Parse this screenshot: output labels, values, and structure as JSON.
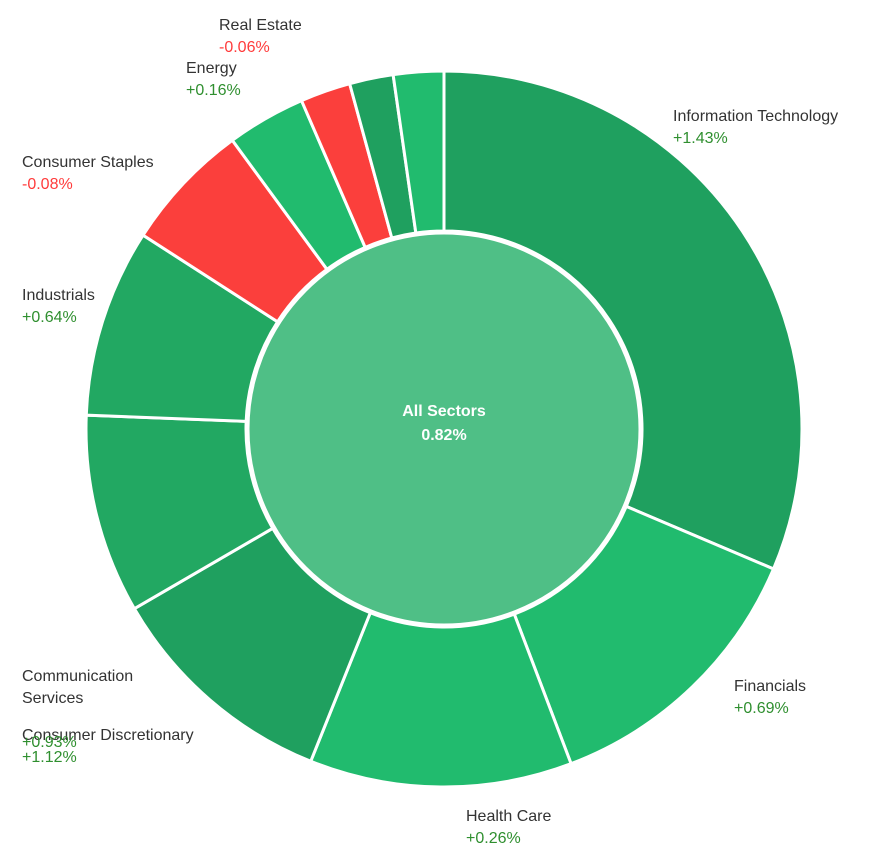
{
  "chart_data": {
    "type": "pie",
    "center": {
      "label": "All Sectors",
      "value": "0.82%"
    },
    "colors": {
      "center": "#4fbf86",
      "dark_green": "#1fa05f",
      "medium_green": "#22a862",
      "green": "#21bb6e",
      "red": "#fb3f3c",
      "border": "#ffffff"
    },
    "sectors": [
      {
        "id": "information-technology",
        "name": "Information Technology",
        "change": "+1.43%",
        "change_value": 1.43,
        "weight": 31.8,
        "color": "#1fa05f"
      },
      {
        "id": "financials",
        "name": "Financials",
        "change": "+0.69%",
        "change_value": 0.69,
        "weight": 13.0,
        "color": "#21bb6e"
      },
      {
        "id": "health-care",
        "name": "Health Care",
        "change": "+0.26%",
        "change_value": 0.26,
        "weight": 12.0,
        "color": "#21bb6e"
      },
      {
        "id": "consumer-discretionary",
        "name": "Consumer Discretionary",
        "change": "+1.12%",
        "change_value": 1.12,
        "weight": 10.7,
        "color": "#1fa05f"
      },
      {
        "id": "communication-services",
        "name": "Communication Services",
        "change": "+0.93%",
        "change_value": 0.93,
        "weight": 9.1,
        "color": "#22a862"
      },
      {
        "id": "industrials",
        "name": "Industrials",
        "change": "+0.64%",
        "change_value": 0.64,
        "weight": 8.6,
        "color": "#22a862"
      },
      {
        "id": "consumer-staples",
        "name": "Consumer Staples",
        "change": "-0.08%",
        "change_value": -0.08,
        "weight": 5.9,
        "color": "#fb3f3c"
      },
      {
        "id": "energy",
        "name": "Energy",
        "change": "+0.16%",
        "change_value": 0.16,
        "weight": 3.6,
        "color": "#21bb6e"
      },
      {
        "id": "real-estate",
        "name": "Real Estate",
        "change": "-0.06%",
        "change_value": -0.06,
        "weight": 2.3,
        "color": "#fb3f3c"
      },
      {
        "id": "materials",
        "name": "",
        "change": "",
        "change_value": null,
        "weight": 2.0,
        "color": "#1fa05f"
      },
      {
        "id": "utilities",
        "name": "",
        "change": "",
        "change_value": null,
        "weight": 2.3,
        "color": "#21bb6e"
      }
    ],
    "labels": {
      "information-technology": {
        "name": "Information Technology",
        "change": "+1.43%"
      },
      "financials": {
        "name": "Financials",
        "change": "+0.69%"
      },
      "health-care": {
        "name": "Health Care",
        "change": "+0.26%"
      },
      "consumer-discretionary": {
        "name": "Consumer Discretionary",
        "change": "+1.12%"
      },
      "communication-services": {
        "name": "Communication\nServices",
        "change": "+0.93%"
      },
      "industrials": {
        "name": "Industrials",
        "change": "+0.64%"
      },
      "consumer-staples": {
        "name": "Consumer Staples",
        "change": "-0.08%"
      },
      "energy": {
        "name": "Energy",
        "change": "+0.16%"
      },
      "real-estate": {
        "name": "Real Estate",
        "change": "-0.06%"
      }
    }
  }
}
